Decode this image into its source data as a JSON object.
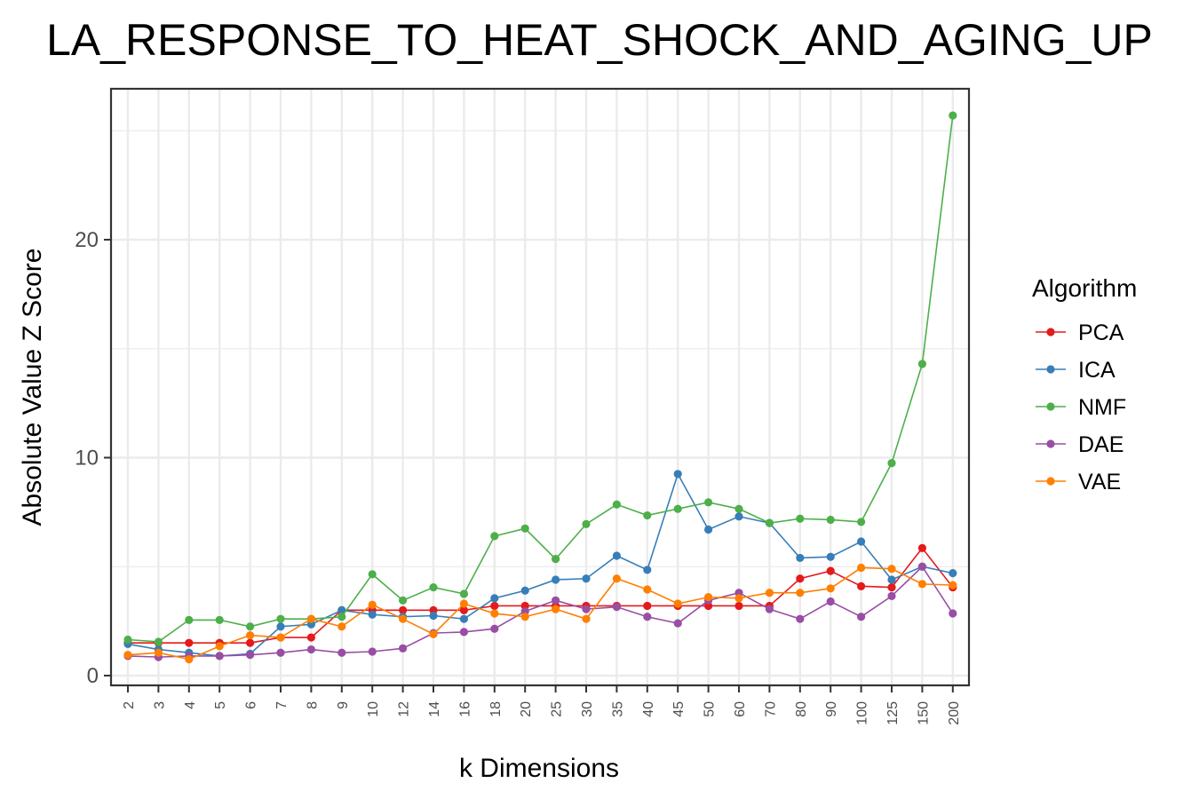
{
  "chart_data": {
    "type": "line",
    "title": "LA_RESPONSE_TO_HEAT_SHOCK_AND_AGING_UP",
    "xlabel": "k Dimensions",
    "ylabel": "Absolute Value Z Score",
    "ylim": [
      0,
      26
    ],
    "yticks": [
      0,
      10,
      20
    ],
    "grid": true,
    "legend_title": "Algorithm",
    "legend_position": "right",
    "categories": [
      "2",
      "3",
      "4",
      "5",
      "6",
      "7",
      "8",
      "9",
      "10",
      "12",
      "14",
      "16",
      "18",
      "20",
      "25",
      "30",
      "35",
      "40",
      "45",
      "50",
      "60",
      "70",
      "80",
      "90",
      "100",
      "125",
      "150",
      "200"
    ],
    "series": [
      {
        "name": "PCA",
        "color": "#E41A1C",
        "values": [
          1.5,
          1.5,
          1.5,
          1.5,
          1.5,
          1.75,
          1.75,
          3.0,
          3.0,
          3.0,
          3.0,
          3.0,
          3.2,
          3.2,
          3.2,
          3.2,
          3.2,
          3.2,
          3.2,
          3.2,
          3.2,
          3.2,
          4.45,
          4.8,
          4.1,
          4.05,
          5.85,
          4.05
        ]
      },
      {
        "name": "ICA",
        "color": "#377EB8",
        "values": [
          1.45,
          1.2,
          1.05,
          0.9,
          1.0,
          2.25,
          2.35,
          3.0,
          2.8,
          2.7,
          2.75,
          2.6,
          3.55,
          3.9,
          4.4,
          4.45,
          5.5,
          4.85,
          9.25,
          6.7,
          7.3,
          7.0,
          5.4,
          5.45,
          6.15,
          4.4,
          5.0,
          4.7
        ]
      },
      {
        "name": "NMF",
        "color": "#4DAF4A",
        "values": [
          1.65,
          1.55,
          2.55,
          2.55,
          2.25,
          2.6,
          2.6,
          2.7,
          4.65,
          3.45,
          4.05,
          3.75,
          6.4,
          6.75,
          5.35,
          6.95,
          7.85,
          7.35,
          7.65,
          7.95,
          7.65,
          7.0,
          7.2,
          7.15,
          7.05,
          9.75,
          14.3,
          25.7
        ]
      },
      {
        "name": "DAE",
        "color": "#984EA3",
        "values": [
          0.9,
          0.85,
          0.9,
          0.9,
          0.95,
          1.05,
          1.2,
          1.05,
          1.1,
          1.25,
          1.95,
          2.0,
          2.15,
          2.95,
          3.45,
          3.05,
          3.15,
          2.7,
          2.4,
          3.45,
          3.8,
          3.05,
          2.6,
          3.4,
          2.7,
          3.65,
          5.0,
          2.85
        ]
      },
      {
        "name": "VAE",
        "color": "#FF7F00",
        "values": [
          0.95,
          1.05,
          0.75,
          1.35,
          1.85,
          1.75,
          2.6,
          2.25,
          3.25,
          2.6,
          1.9,
          3.3,
          2.85,
          2.7,
          3.05,
          2.6,
          4.45,
          3.95,
          3.3,
          3.6,
          3.55,
          3.8,
          3.8,
          4.0,
          4.95,
          4.9,
          4.2,
          4.15
        ]
      }
    ]
  }
}
